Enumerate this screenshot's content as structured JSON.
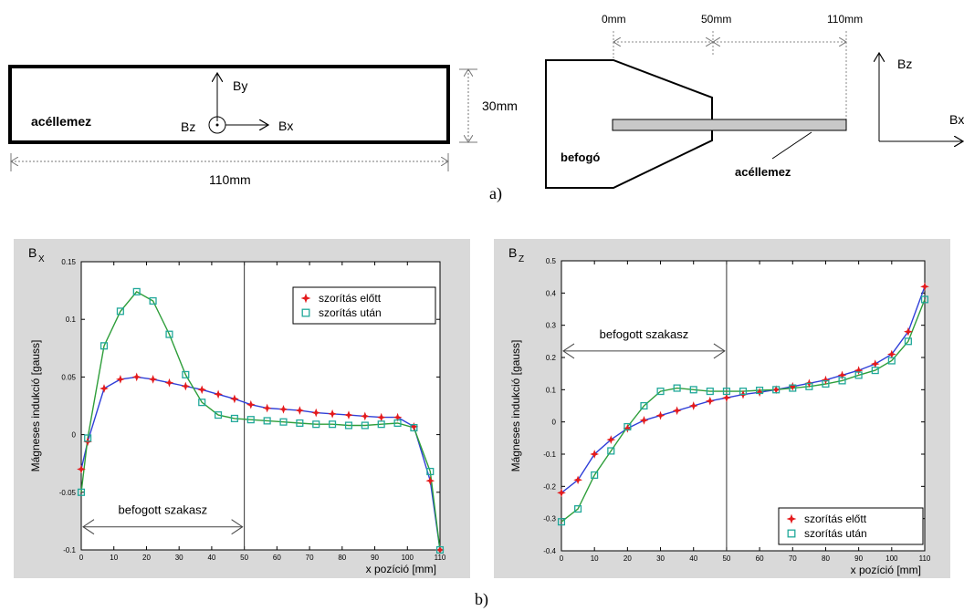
{
  "figure_a": {
    "plate_label": "acéllemez",
    "axis_by": "By",
    "axis_bz": "Bz",
    "axis_bx": "Bx",
    "height_dim": "30mm",
    "width_dim": "110mm",
    "pos_0": "0mm",
    "pos_50": "50mm",
    "pos_110": "110mm",
    "clamp_label": "befogó",
    "plate_label_side": "acéllemez",
    "side_axis_bz": "Bz",
    "side_axis_bx": "Bx",
    "panel_label": "a)"
  },
  "panel_b_label": "b)",
  "chart_data": [
    {
      "type": "line",
      "title": "B",
      "title_sub": "X",
      "xlabel": "x pozíció  [mm]",
      "ylabel": "Mágneses indukció  [gauss]",
      "xlim": [
        0,
        110
      ],
      "ylim": [
        -0.1,
        0.15
      ],
      "xticks": [
        0,
        10,
        20,
        30,
        40,
        50,
        60,
        70,
        80,
        90,
        100,
        110
      ],
      "yticks": [
        -0.1,
        -0.05,
        0,
        0.05,
        0.1,
        0.15
      ],
      "ytick_labels": [
        "-0.1",
        "-0.05",
        "0",
        "0.05",
        "0.1",
        "0.15"
      ],
      "legend": "top-right",
      "annotation": "befogott szakasz",
      "annotation_range": [
        0,
        50
      ],
      "annotation_y": -0.08,
      "vline_x": 50,
      "series": [
        {
          "name": "szorítás előtt",
          "marker": "star",
          "color": "#e41a1c",
          "line_color": "#2f3fd8",
          "x": [
            0,
            2,
            7,
            12,
            17,
            22,
            27,
            32,
            37,
            42,
            47,
            52,
            57,
            62,
            67,
            72,
            77,
            82,
            87,
            92,
            97,
            102,
            107,
            110
          ],
          "y": [
            -0.03,
            -0.006,
            0.04,
            0.048,
            0.05,
            0.048,
            0.045,
            0.042,
            0.039,
            0.035,
            0.031,
            0.026,
            0.023,
            0.022,
            0.021,
            0.019,
            0.018,
            0.017,
            0.016,
            0.015,
            0.015,
            0.007,
            -0.04,
            -0.1
          ]
        },
        {
          "name": "szorítás után",
          "marker": "square",
          "color": "#20a89a",
          "line_color": "#2e9e3a",
          "x": [
            0,
            2,
            7,
            12,
            17,
            22,
            27,
            32,
            37,
            42,
            47,
            52,
            57,
            62,
            67,
            72,
            77,
            82,
            87,
            92,
            97,
            102,
            107,
            110
          ],
          "y": [
            -0.05,
            -0.003,
            0.077,
            0.107,
            0.124,
            0.116,
            0.087,
            0.052,
            0.028,
            0.017,
            0.014,
            0.013,
            0.012,
            0.011,
            0.01,
            0.009,
            0.009,
            0.008,
            0.008,
            0.009,
            0.01,
            0.006,
            -0.032,
            -0.1
          ]
        }
      ]
    },
    {
      "type": "line",
      "title": "B",
      "title_sub": "Z",
      "xlabel": "x pozíció   [mm]",
      "ylabel": "Mágneses indukció  [gauss]",
      "xlim": [
        0,
        110
      ],
      "ylim": [
        -0.4,
        0.5
      ],
      "xticks": [
        0,
        10,
        20,
        30,
        40,
        50,
        60,
        70,
        80,
        90,
        100,
        110
      ],
      "yticks": [
        -0.4,
        -0.3,
        -0.2,
        -0.1,
        0,
        0.1,
        0.2,
        0.3,
        0.4,
        0.5
      ],
      "ytick_labels": [
        "-0.4",
        "-0.3",
        "-0.2",
        "-0.1",
        "0",
        "0.1",
        "0.2",
        "0.3",
        "0.4",
        "0.5"
      ],
      "legend": "bottom-right",
      "annotation": "befogott szakasz",
      "annotation_range": [
        0,
        50
      ],
      "annotation_y": 0.22,
      "vline_x": 50,
      "series": [
        {
          "name": "szorítás előtt",
          "marker": "star",
          "color": "#e41a1c",
          "line_color": "#2f3fd8",
          "x": [
            0,
            5,
            10,
            15,
            20,
            25,
            30,
            35,
            40,
            45,
            50,
            55,
            60,
            65,
            70,
            75,
            80,
            85,
            90,
            95,
            100,
            105,
            110
          ],
          "y": [
            -0.22,
            -0.18,
            -0.1,
            -0.055,
            -0.02,
            0.005,
            0.02,
            0.035,
            0.05,
            0.065,
            0.075,
            0.085,
            0.092,
            0.1,
            0.11,
            0.12,
            0.13,
            0.145,
            0.16,
            0.18,
            0.21,
            0.28,
            0.42
          ]
        },
        {
          "name": "szorítás után",
          "marker": "square",
          "color": "#20a89a",
          "line_color": "#2e9e3a",
          "x": [
            0,
            5,
            10,
            15,
            20,
            25,
            30,
            35,
            40,
            45,
            50,
            55,
            60,
            65,
            70,
            75,
            80,
            85,
            90,
            95,
            100,
            105,
            110
          ],
          "y": [
            -0.31,
            -0.27,
            -0.165,
            -0.09,
            -0.015,
            0.05,
            0.095,
            0.105,
            0.1,
            0.095,
            0.095,
            0.095,
            0.098,
            0.1,
            0.105,
            0.11,
            0.118,
            0.128,
            0.145,
            0.16,
            0.19,
            0.25,
            0.38
          ]
        }
      ]
    }
  ]
}
